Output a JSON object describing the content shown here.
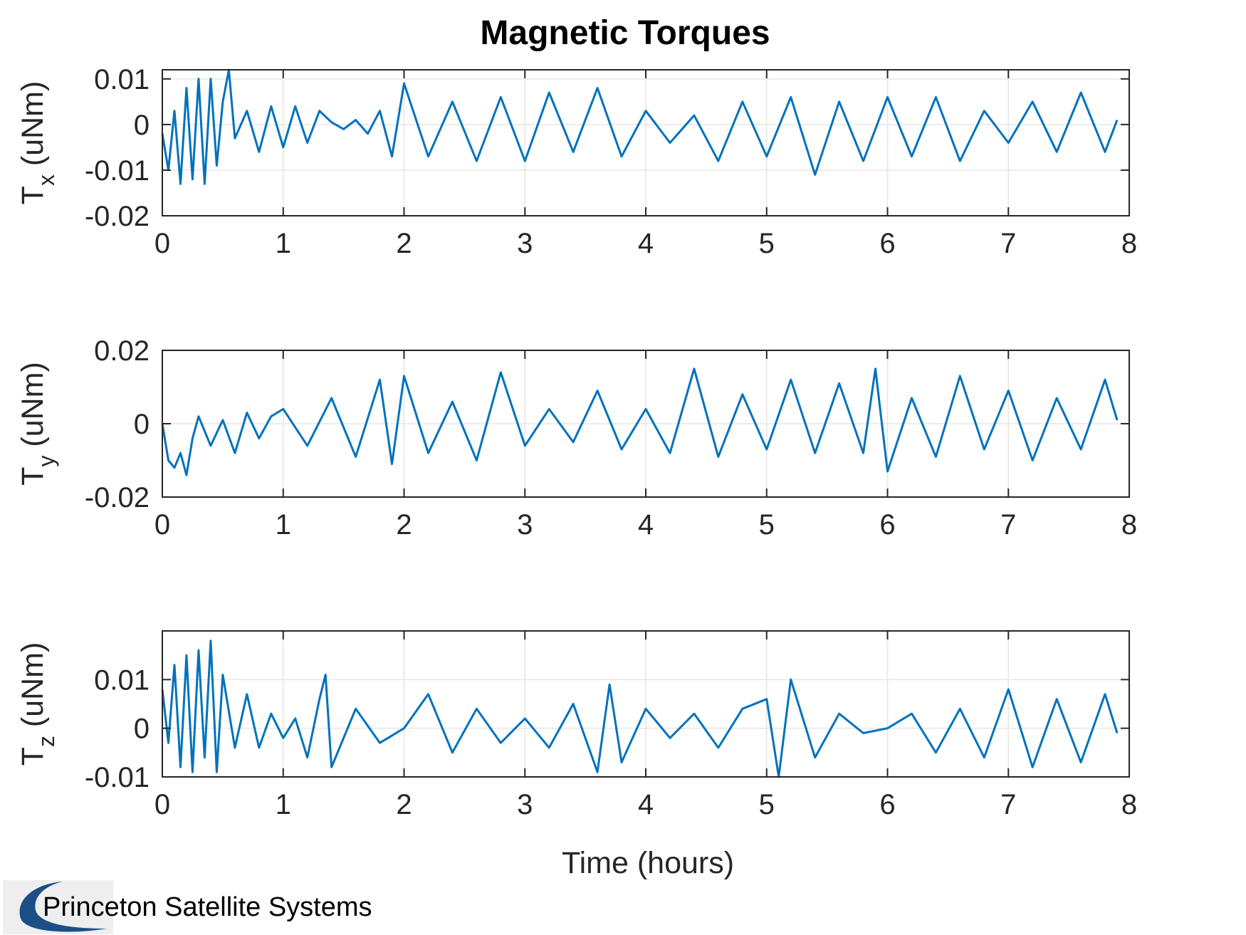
{
  "chart_data": {
    "type": "line",
    "title": "Magnetic Torques",
    "line_color": "#0072bd",
    "grid": true,
    "subplots": [
      {
        "ylabel_main": "T",
        "ylabel_sub": "x",
        "ylabel_unit": " (uNm)",
        "xlim": [
          0,
          8
        ],
        "ylim": [
          -0.02,
          0.012
        ],
        "xticks": [
          "0",
          "1",
          "2",
          "3",
          "4",
          "5",
          "6",
          "7",
          "8"
        ],
        "yticks": [
          {
            "v": 0.01,
            "label": "0.01"
          },
          {
            "v": 0,
            "label": "0"
          },
          {
            "v": -0.01,
            "label": "-0.01"
          },
          {
            "v": -0.02,
            "label": "-0.02"
          }
        ],
        "series": [
          {
            "x": [
              0,
              0.05,
              0.1,
              0.15,
              0.2,
              0.25,
              0.3,
              0.35,
              0.4,
              0.45,
              0.5,
              0.55,
              0.6,
              0.7,
              0.8,
              0.9,
              1.0,
              1.1,
              1.2,
              1.3,
              1.4,
              1.5,
              1.6,
              1.7,
              1.8,
              1.9,
              2.0,
              2.2,
              2.4,
              2.6,
              2.8,
              3.0,
              3.2,
              3.4,
              3.6,
              3.8,
              4.0,
              4.2,
              4.4,
              4.6,
              4.8,
              5.0,
              5.2,
              5.4,
              5.6,
              5.8,
              6.0,
              6.2,
              6.4,
              6.6,
              6.8,
              7.0,
              7.2,
              7.4,
              7.6,
              7.8,
              7.9
            ],
            "y": [
              -0.002,
              -0.01,
              0.003,
              -0.013,
              0.008,
              -0.012,
              0.01,
              -0.013,
              0.01,
              -0.009,
              0.005,
              0.012,
              -0.003,
              0.003,
              -0.006,
              0.004,
              -0.005,
              0.004,
              -0.004,
              0.003,
              0.0005,
              -0.001,
              0.001,
              -0.002,
              0.003,
              -0.007,
              0.009,
              -0.007,
              0.005,
              -0.008,
              0.006,
              -0.008,
              0.007,
              -0.006,
              0.008,
              -0.007,
              0.003,
              -0.004,
              0.002,
              -0.008,
              0.005,
              -0.007,
              0.006,
              -0.011,
              0.005,
              -0.008,
              0.006,
              -0.007,
              0.006,
              -0.008,
              0.003,
              -0.004,
              0.005,
              -0.006,
              0.007,
              -0.006,
              0.001
            ]
          }
        ]
      },
      {
        "ylabel_main": "T",
        "ylabel_sub": "y",
        "ylabel_unit": " (uNm)",
        "xlim": [
          0,
          8
        ],
        "ylim": [
          -0.02,
          0.02
        ],
        "xticks": [
          "0",
          "1",
          "2",
          "3",
          "4",
          "5",
          "6",
          "7",
          "8"
        ],
        "yticks": [
          {
            "v": 0.02,
            "label": "0.02"
          },
          {
            "v": 0,
            "label": "0"
          },
          {
            "v": -0.02,
            "label": "-0.02"
          }
        ],
        "series": [
          {
            "x": [
              0,
              0.05,
              0.1,
              0.15,
              0.2,
              0.25,
              0.3,
              0.4,
              0.5,
              0.6,
              0.7,
              0.8,
              0.9,
              1.0,
              1.2,
              1.4,
              1.6,
              1.8,
              1.9,
              2.0,
              2.2,
              2.4,
              2.6,
              2.8,
              3.0,
              3.2,
              3.4,
              3.6,
              3.8,
              4.0,
              4.2,
              4.4,
              4.6,
              4.8,
              5.0,
              5.2,
              5.4,
              5.6,
              5.8,
              5.9,
              6.0,
              6.2,
              6.4,
              6.6,
              6.8,
              7.0,
              7.2,
              7.4,
              7.6,
              7.8,
              7.9
            ],
            "y": [
              0.0,
              -0.01,
              -0.012,
              -0.008,
              -0.014,
              -0.004,
              0.002,
              -0.006,
              0.001,
              -0.008,
              0.003,
              -0.004,
              0.002,
              0.004,
              -0.006,
              0.007,
              -0.009,
              0.012,
              -0.011,
              0.013,
              -0.008,
              0.006,
              -0.01,
              0.014,
              -0.006,
              0.004,
              -0.005,
              0.009,
              -0.007,
              0.004,
              -0.008,
              0.015,
              -0.009,
              0.008,
              -0.007,
              0.012,
              -0.008,
              0.011,
              -0.008,
              0.015,
              -0.013,
              0.007,
              -0.009,
              0.013,
              -0.007,
              0.009,
              -0.01,
              0.007,
              -0.007,
              0.012,
              0.001
            ]
          }
        ]
      },
      {
        "ylabel_main": "T",
        "ylabel_sub": "z",
        "ylabel_unit": " (uNm)",
        "xlim": [
          0,
          8
        ],
        "ylim": [
          -0.01,
          0.02
        ],
        "xticks": [
          "0",
          "1",
          "2",
          "3",
          "4",
          "5",
          "6",
          "7",
          "8"
        ],
        "yticks": [
          {
            "v": 0.01,
            "label": "0.01"
          },
          {
            "v": 0,
            "label": "0"
          },
          {
            "v": -0.01,
            "label": "-0.01"
          }
        ],
        "series": [
          {
            "x": [
              0,
              0.05,
              0.1,
              0.15,
              0.2,
              0.25,
              0.3,
              0.35,
              0.4,
              0.45,
              0.5,
              0.6,
              0.7,
              0.8,
              0.9,
              1.0,
              1.1,
              1.2,
              1.3,
              1.35,
              1.4,
              1.6,
              1.8,
              2.0,
              2.2,
              2.4,
              2.6,
              2.8,
              3.0,
              3.2,
              3.4,
              3.6,
              3.7,
              3.8,
              4.0,
              4.2,
              4.4,
              4.6,
              4.8,
              5.0,
              5.1,
              5.2,
              5.4,
              5.6,
              5.8,
              6.0,
              6.2,
              6.4,
              6.6,
              6.8,
              7.0,
              7.2,
              7.4,
              7.6,
              7.8,
              7.9
            ],
            "y": [
              0.008,
              -0.003,
              0.013,
              -0.008,
              0.015,
              -0.009,
              0.016,
              -0.006,
              0.018,
              -0.009,
              0.011,
              -0.004,
              0.007,
              -0.004,
              0.003,
              -0.002,
              0.002,
              -0.006,
              0.006,
              0.011,
              -0.008,
              0.004,
              -0.003,
              0.0,
              0.007,
              -0.005,
              0.004,
              -0.003,
              0.002,
              -0.004,
              0.005,
              -0.009,
              0.009,
              -0.007,
              0.004,
              -0.002,
              0.003,
              -0.004,
              0.004,
              0.006,
              -0.01,
              0.01,
              -0.006,
              0.003,
              -0.001,
              0.0,
              0.003,
              -0.005,
              0.004,
              -0.006,
              0.008,
              -0.008,
              0.006,
              -0.007,
              0.007,
              -0.001
            ]
          }
        ]
      }
    ],
    "xlabel": "Time (hours)"
  },
  "logo": {
    "text": "Princeton Satellite Systems",
    "icon": "crescent-logo-icon"
  }
}
